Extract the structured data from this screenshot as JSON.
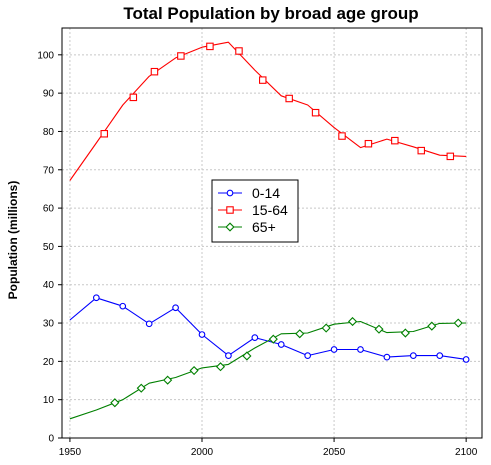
{
  "chart_data": {
    "type": "line",
    "title": "Total Population by broad age group",
    "xlabel": "",
    "ylabel": "Population (millions)",
    "xlim": [
      1947,
      2106
    ],
    "ylim": [
      0,
      107
    ],
    "x_ticks": [
      1950,
      2000,
      2050,
      2100
    ],
    "y_ticks": [
      0,
      10,
      20,
      30,
      40,
      50,
      60,
      70,
      80,
      90,
      100
    ],
    "grid": true,
    "legend_position": "center-left",
    "series": [
      {
        "name": "0-14",
        "color": "#0000ff",
        "marker": "circle",
        "x": [
          1950,
          1960,
          1970,
          1980,
          1990,
          2000,
          2010,
          2020,
          2030,
          2040,
          2050,
          2060,
          2070,
          2080,
          2090,
          2100
        ],
        "y": [
          30.8,
          36.6,
          34.4,
          29.8,
          34.0,
          27.0,
          21.5,
          26.2,
          24.4,
          21.5,
          23.1,
          23.1,
          21.1,
          21.5,
          21.5,
          20.5
        ],
        "marker_x": [
          1960,
          1970,
          1980,
          1990,
          2000,
          2010,
          2020,
          2030,
          2040,
          2050,
          2060,
          2070,
          2080,
          2090,
          2100
        ],
        "marker_y": [
          36.6,
          34.4,
          29.8,
          34.0,
          27.0,
          21.5,
          26.2,
          24.4,
          21.5,
          23.1,
          23.1,
          21.1,
          21.5,
          21.5,
          20.5
        ]
      },
      {
        "name": "15-64",
        "color": "#ff0000",
        "marker": "square",
        "x": [
          1950,
          1960,
          1970,
          1980,
          1990,
          2000,
          2010,
          2020,
          2030,
          2040,
          2050,
          2060,
          2070,
          2080,
          2090,
          2100
        ],
        "y": [
          67.2,
          77.0,
          86.9,
          94.4,
          99.2,
          102.0,
          103.3,
          96.0,
          89.3,
          86.9,
          81.0,
          75.8,
          78.0,
          76.0,
          73.8,
          73.5
        ],
        "marker_x": [
          1963,
          1974,
          1982,
          1992,
          2003,
          2014,
          2023,
          2033,
          2043,
          2053,
          2063,
          2073,
          2083,
          2094
        ],
        "marker_y": [
          79.4,
          88.9,
          95.6,
          99.7,
          102.2,
          101.0,
          93.4,
          88.6,
          84.9,
          78.8,
          76.8,
          77.6,
          75.0,
          73.5
        ]
      },
      {
        "name": "65+",
        "color": "#008000",
        "marker": "diamond",
        "x": [
          1950,
          1960,
          1970,
          1980,
          1990,
          2000,
          2010,
          2020,
          2030,
          2040,
          2050,
          2060,
          2070,
          2080,
          2090,
          2100
        ],
        "y": [
          5.0,
          7.3,
          10.0,
          14.3,
          15.8,
          18.3,
          19.2,
          23.5,
          27.2,
          27.4,
          29.7,
          30.4,
          27.5,
          27.8,
          29.9,
          30.0
        ],
        "marker_x": [
          1967,
          1977,
          1987,
          1997,
          2007,
          2017,
          2027,
          2037,
          2047,
          2057,
          2067,
          2077,
          2087,
          2097
        ],
        "marker_y": [
          9.2,
          13.0,
          15.1,
          17.6,
          18.6,
          21.4,
          25.8,
          27.2,
          28.7,
          30.4,
          28.4,
          27.4,
          29.2,
          30.0
        ]
      }
    ]
  }
}
